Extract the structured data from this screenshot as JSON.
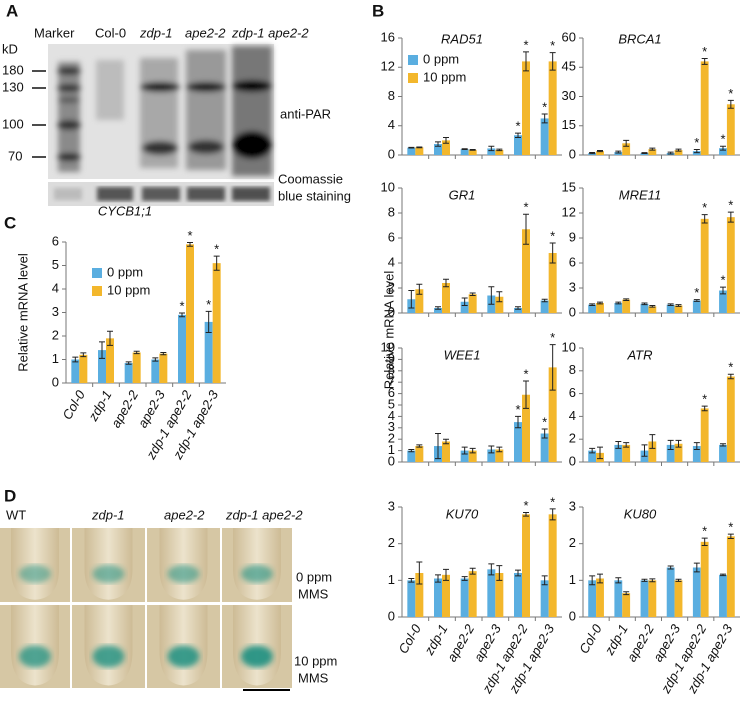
{
  "panel_labels": [
    "A",
    "B",
    "C",
    "D"
  ],
  "panel_a": {
    "lanes": [
      "Marker",
      "Col-0",
      "zdp-1",
      "ape2-2",
      "zdp-1 ape2-2"
    ],
    "unit": "kD",
    "markers": [
      "180",
      "130",
      "100",
      "70"
    ],
    "antibody": "anti-PAR",
    "stain": [
      "Coomassie",
      "blue staining"
    ]
  },
  "panel_b": {
    "y_label": "Relative mRNA level"
  },
  "panel_d": {
    "genotypes": [
      "WT",
      "zdp-1",
      "ape2-2",
      "zdp-1 ape2-2"
    ],
    "treatments": [
      [
        "0 ppm",
        "MMS"
      ],
      [
        "10 ppm",
        "MMS"
      ]
    ]
  },
  "chart_data": [
    {
      "type": "bar",
      "title": "CYCB1;1",
      "y_label": "Relative mRNA level",
      "sig_label": "*",
      "legend": true,
      "categories": [
        "Col-0",
        "zdp-1",
        "ape2-2",
        "ape2-3",
        "zdp-1 ape2-2",
        "zdp-1 ape2-3"
      ],
      "ylim": [
        0,
        6
      ],
      "yticks": [
        0,
        1,
        2,
        3,
        4,
        5,
        6
      ],
      "series": [
        {
          "name": "0 ppm",
          "color": "#5aaee0",
          "values": [
            1.0,
            1.4,
            0.85,
            1.0,
            2.9,
            2.6
          ],
          "errors": [
            0.1,
            0.35,
            0.05,
            0.07,
            0.08,
            0.45
          ],
          "significant": [
            false,
            false,
            false,
            false,
            true,
            true
          ]
        },
        {
          "name": "10 ppm",
          "color": "#f3b72c",
          "values": [
            1.2,
            1.9,
            1.3,
            1.25,
            5.9,
            5.1
          ],
          "errors": [
            0.08,
            0.3,
            0.05,
            0.05,
            0.08,
            0.3
          ],
          "significant": [
            false,
            false,
            false,
            false,
            true,
            true
          ]
        }
      ]
    },
    {
      "type": "bar",
      "title": "RAD51",
      "sig_label": "*",
      "legend": true,
      "ylim": [
        0,
        16
      ],
      "yticks": [
        0,
        4,
        8,
        12,
        16
      ],
      "series": [
        {
          "name": "0 ppm",
          "color": "#5aaee0",
          "values": [
            1.0,
            1.5,
            0.8,
            0.9,
            2.7,
            5.0
          ],
          "errors": [
            0.05,
            0.3,
            0.05,
            0.3,
            0.3,
            0.6
          ],
          "significant": [
            false,
            false,
            false,
            false,
            true,
            true
          ]
        },
        {
          "name": "10 ppm",
          "color": "#f3b72c",
          "values": [
            1.05,
            2.0,
            0.7,
            0.7,
            12.8,
            12.8
          ],
          "errors": [
            0.05,
            0.4,
            0.05,
            0.1,
            1.3,
            1.2
          ],
          "significant": [
            false,
            false,
            false,
            false,
            true,
            true
          ]
        }
      ]
    },
    {
      "type": "bar",
      "title": "BRCA1",
      "sig_label": "*",
      "ylim": [
        0,
        60
      ],
      "yticks": [
        0,
        15,
        30,
        45,
        60
      ],
      "series": [
        {
          "color": "#5aaee0",
          "values": [
            1,
            1.5,
            1,
            1,
            2,
            3.5
          ],
          "errors": [
            0.3,
            0.5,
            0.2,
            0.5,
            0.8,
            1.0
          ],
          "significant": [
            false,
            false,
            false,
            false,
            true,
            true
          ]
        },
        {
          "color": "#f3b72c",
          "values": [
            2,
            6,
            3,
            2.5,
            48,
            26
          ],
          "errors": [
            0.3,
            1.5,
            0.5,
            0.5,
            1.5,
            2.0
          ],
          "significant": [
            false,
            false,
            false,
            false,
            true,
            true
          ]
        }
      ]
    },
    {
      "type": "bar",
      "title": "GR1",
      "sig_label": "*",
      "ylim": [
        0,
        10
      ],
      "yticks": [
        0,
        2,
        4,
        6,
        8,
        10
      ],
      "series": [
        {
          "color": "#5aaee0",
          "values": [
            1.1,
            0.4,
            0.9,
            1.4,
            0.4,
            1.0
          ],
          "errors": [
            0.7,
            0.1,
            0.3,
            0.7,
            0.1,
            0.1
          ],
          "significant": [
            false,
            false,
            false,
            false,
            false,
            false
          ]
        },
        {
          "color": "#f3b72c",
          "values": [
            1.9,
            2.4,
            1.5,
            1.3,
            6.7,
            4.8
          ],
          "errors": [
            0.4,
            0.3,
            0.1,
            0.4,
            1.2,
            0.8
          ],
          "significant": [
            false,
            false,
            false,
            false,
            true,
            true
          ]
        }
      ]
    },
    {
      "type": "bar",
      "title": "MRE11",
      "sig_label": "*",
      "ylim": [
        0,
        15
      ],
      "yticks": [
        0,
        3,
        6,
        9,
        12,
        15
      ],
      "series": [
        {
          "color": "#5aaee0",
          "values": [
            1,
            1.2,
            1.1,
            1,
            1.5,
            2.7
          ],
          "errors": [
            0.1,
            0.1,
            0.1,
            0.1,
            0.1,
            0.4
          ],
          "significant": [
            false,
            false,
            false,
            false,
            true,
            true
          ]
        },
        {
          "color": "#f3b72c",
          "values": [
            1.2,
            1.6,
            0.8,
            0.9,
            11.3,
            11.5
          ],
          "errors": [
            0.1,
            0.1,
            0.1,
            0.1,
            0.5,
            0.6
          ],
          "significant": [
            false,
            false,
            false,
            false,
            true,
            true
          ]
        }
      ]
    },
    {
      "type": "bar",
      "title": "WEE1",
      "sig_label": "*",
      "ylim": [
        0,
        10
      ],
      "yticks": [
        0,
        1,
        2,
        3,
        4,
        5,
        6,
        7,
        8,
        9,
        10
      ],
      "series": [
        {
          "color": "#5aaee0",
          "values": [
            1,
            1.4,
            1,
            1.1,
            3.5,
            2.5
          ],
          "errors": [
            0.1,
            1.1,
            0.3,
            0.3,
            0.5,
            0.4
          ],
          "significant": [
            false,
            false,
            false,
            false,
            true,
            true
          ]
        },
        {
          "color": "#f3b72c",
          "values": [
            1.4,
            1.8,
            1,
            1.1,
            5.9,
            8.3
          ],
          "errors": [
            0.1,
            0.2,
            0.2,
            0.2,
            1.2,
            2.0
          ],
          "significant": [
            false,
            false,
            false,
            false,
            true,
            true
          ]
        }
      ]
    },
    {
      "type": "bar",
      "title": "ATR",
      "sig_label": "*",
      "ylim": [
        0,
        10
      ],
      "yticks": [
        0,
        2,
        4,
        6,
        8,
        10
      ],
      "series": [
        {
          "color": "#5aaee0",
          "values": [
            1,
            1.5,
            1,
            1.5,
            1.4,
            1.5
          ],
          "errors": [
            0.2,
            0.3,
            0.5,
            0.4,
            0.3,
            0.1
          ],
          "significant": [
            false,
            false,
            false,
            false,
            false,
            false
          ]
        },
        {
          "color": "#f3b72c",
          "values": [
            0.8,
            1.5,
            1.8,
            1.6,
            4.7,
            7.5
          ],
          "errors": [
            0.5,
            0.2,
            0.6,
            0.3,
            0.2,
            0.2
          ],
          "significant": [
            false,
            false,
            false,
            false,
            true,
            true
          ]
        }
      ]
    },
    {
      "type": "bar",
      "title": "KU70",
      "sig_label": "*",
      "categories": [
        "Col-0",
        "zdp-1",
        "ape2-2",
        "ape2-3",
        "zdp-1 ape2-2",
        "zdp-1 ape2-3"
      ],
      "ylim": [
        0,
        3
      ],
      "yticks": [
        0,
        1,
        2,
        3
      ],
      "series": [
        {
          "color": "#5aaee0",
          "values": [
            1,
            1.05,
            1.05,
            1.3,
            1.2,
            1.0
          ],
          "errors": [
            0.05,
            0.1,
            0.05,
            0.15,
            0.08,
            0.12
          ],
          "significant": [
            false,
            false,
            false,
            false,
            false,
            false
          ]
        },
        {
          "color": "#f3b72c",
          "values": [
            1.2,
            1.15,
            1.25,
            1.2,
            2.8,
            2.8
          ],
          "errors": [
            0.3,
            0.15,
            0.08,
            0.2,
            0.05,
            0.15
          ],
          "significant": [
            false,
            false,
            false,
            false,
            true,
            true
          ]
        }
      ]
    },
    {
      "type": "bar",
      "title": "KU80",
      "sig_label": "*",
      "categories": [
        "Col-0",
        "zdp-1",
        "ape2-2",
        "ape2-3",
        "zdp-1 ape2-2",
        "zdp-1 ape2-3"
      ],
      "ylim": [
        0,
        3
      ],
      "yticks": [
        0,
        1,
        2,
        3
      ],
      "series": [
        {
          "color": "#5aaee0",
          "values": [
            1,
            1,
            1,
            1.35,
            1.35,
            1.15
          ],
          "errors": [
            0.12,
            0.07,
            0.03,
            0.04,
            0.12,
            0.02
          ],
          "significant": [
            false,
            false,
            false,
            false,
            false,
            false
          ]
        },
        {
          "color": "#f3b72c",
          "values": [
            1.05,
            0.65,
            1.0,
            1.0,
            2.05,
            2.2
          ],
          "errors": [
            0.12,
            0.04,
            0.04,
            0.03,
            0.1,
            0.06
          ],
          "significant": [
            false,
            false,
            false,
            false,
            true,
            true
          ]
        }
      ]
    }
  ]
}
